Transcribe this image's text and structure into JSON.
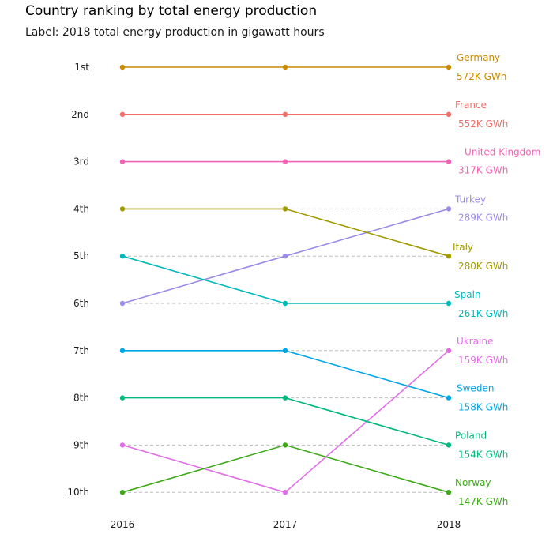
{
  "title": "Country ranking by total energy production",
  "subtitle": "Label: 2018 total energy production in gigawatt hours",
  "chart_data": {
    "type": "line",
    "chart_kind": "bump chart (rank over time)",
    "x": [
      "2016",
      "2017",
      "2018"
    ],
    "y_tick_labels": [
      "1st",
      "2nd",
      "3rd",
      "4th",
      "5th",
      "6th",
      "7th",
      "8th",
      "9th",
      "10th"
    ],
    "ylim": [
      1,
      10
    ],
    "y_reversed": true,
    "grid": "dashed horizontal guide segments between ranks",
    "legend": "none (direct labels at right end)",
    "series": [
      {
        "name": "Germany",
        "ranks": [
          1,
          1,
          1
        ],
        "value_label": "572K GWh",
        "color": "#C88A00"
      },
      {
        "name": "France",
        "ranks": [
          2,
          2,
          2
        ],
        "value_label": "552K GWh",
        "color": "#F0706A"
      },
      {
        "name": "United Kingdom",
        "ranks": [
          3,
          3,
          3
        ],
        "value_label": "317K GWh",
        "color": "#F065B4"
      },
      {
        "name": "Turkey",
        "ranks": [
          6,
          5,
          4
        ],
        "value_label": "289K GWh",
        "color": "#998CE8"
      },
      {
        "name": "Italy",
        "ranks": [
          4,
          4,
          5
        ],
        "value_label": "280K GWh",
        "color": "#A09A00"
      },
      {
        "name": "Spain",
        "ranks": [
          5,
          6,
          6
        ],
        "value_label": "261K GWh",
        "color": "#00B8BC"
      },
      {
        "name": "Ukraine",
        "ranks": [
          9,
          10,
          7
        ],
        "value_label": "159K GWh",
        "color": "#E16EE6"
      },
      {
        "name": "Sweden",
        "ranks": [
          7,
          7,
          8
        ],
        "value_label": "158K GWh",
        "color": "#00A5E6"
      },
      {
        "name": "Poland",
        "ranks": [
          8,
          8,
          9
        ],
        "value_label": "154K GWh",
        "color": "#00B87A"
      },
      {
        "name": "Norway",
        "ranks": [
          10,
          9,
          10
        ],
        "value_label": "147K GWh",
        "color": "#3FA81A"
      }
    ]
  }
}
